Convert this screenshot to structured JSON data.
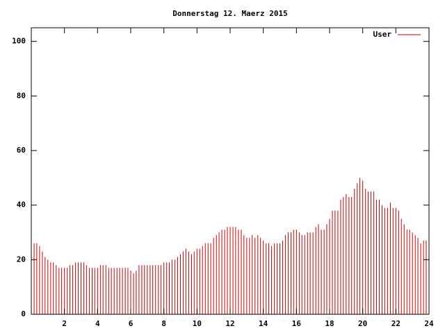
{
  "chart_data": {
    "type": "impulses",
    "title": "Donnerstag 12. Maerz 2015",
    "x": [
      0,
      0.17,
      0.33,
      0.5,
      0.67,
      0.83,
      1,
      1.17,
      1.33,
      1.5,
      1.67,
      1.83,
      2,
      2.17,
      2.33,
      2.5,
      2.67,
      2.83,
      3,
      3.17,
      3.33,
      3.5,
      3.67,
      3.83,
      4,
      4.17,
      4.33,
      4.5,
      4.67,
      4.83,
      5,
      5.17,
      5.33,
      5.5,
      5.67,
      5.83,
      6,
      6.17,
      6.33,
      6.5,
      6.67,
      6.83,
      7,
      7.17,
      7.33,
      7.5,
      7.67,
      7.83,
      8,
      8.17,
      8.33,
      8.5,
      8.67,
      8.83,
      9,
      9.17,
      9.33,
      9.5,
      9.67,
      9.83,
      10,
      10.17,
      10.33,
      10.5,
      10.67,
      10.83,
      11,
      11.17,
      11.33,
      11.5,
      11.67,
      11.83,
      12,
      12.17,
      12.33,
      12.5,
      12.67,
      12.83,
      13,
      13.17,
      13.33,
      13.5,
      13.67,
      13.83,
      14,
      14.17,
      14.33,
      14.5,
      14.67,
      14.83,
      15,
      15.17,
      15.33,
      15.5,
      15.67,
      15.83,
      16,
      16.17,
      16.33,
      16.5,
      16.67,
      16.83,
      17,
      17.17,
      17.33,
      17.5,
      17.67,
      17.83,
      18,
      18.17,
      18.33,
      18.5,
      18.67,
      18.83,
      19,
      19.17,
      19.33,
      19.5,
      19.67,
      19.83,
      20,
      20.17,
      20.33,
      20.5,
      20.67,
      20.83,
      21,
      21.17,
      21.33,
      21.5,
      21.67,
      21.83,
      22,
      22.17,
      22.33,
      22.5,
      22.67,
      22.83,
      23,
      23.17,
      23.33,
      23.5,
      23.67,
      23.83,
      24
    ],
    "series": [
      {
        "name": "User",
        "color": "#cc0000",
        "values": [
          25,
          26,
          26,
          25,
          23,
          21,
          20,
          19,
          19,
          18,
          17,
          17,
          17,
          17,
          18,
          18,
          19,
          19,
          19,
          19,
          18,
          17,
          17,
          17,
          17,
          18,
          18,
          18,
          17,
          17,
          17,
          17,
          17,
          17,
          17,
          17,
          16,
          15,
          16,
          18,
          18,
          18,
          18,
          18,
          18,
          18,
          18,
          18,
          19,
          19,
          19,
          20,
          20,
          21,
          22,
          23,
          24,
          23,
          22,
          23,
          24,
          24,
          25,
          26,
          26,
          26,
          28,
          29,
          30,
          31,
          31,
          32,
          32,
          32,
          32,
          31,
          31,
          29,
          28,
          28,
          29,
          28,
          29,
          28,
          27,
          26,
          26,
          25,
          26,
          26,
          26,
          27,
          29,
          30,
          30,
          31,
          31,
          30,
          29,
          29,
          30,
          30,
          30,
          32,
          33,
          31,
          31,
          33,
          35,
          38,
          38,
          38,
          42,
          43,
          44,
          43,
          43,
          46,
          48,
          50,
          49,
          46,
          45,
          45,
          45,
          42,
          42,
          40,
          39,
          39,
          41,
          39,
          39,
          38,
          35,
          33,
          31,
          31,
          30,
          29,
          28,
          26,
          27,
          27,
          28
        ]
      }
    ],
    "xlim": [
      0,
      24
    ],
    "xticks": [
      2,
      4,
      6,
      8,
      10,
      12,
      14,
      16,
      18,
      20,
      22,
      24
    ],
    "ylim": [
      0,
      105
    ],
    "yticks": [
      0,
      20,
      40,
      60,
      80,
      100
    ],
    "legend": "top-right"
  }
}
